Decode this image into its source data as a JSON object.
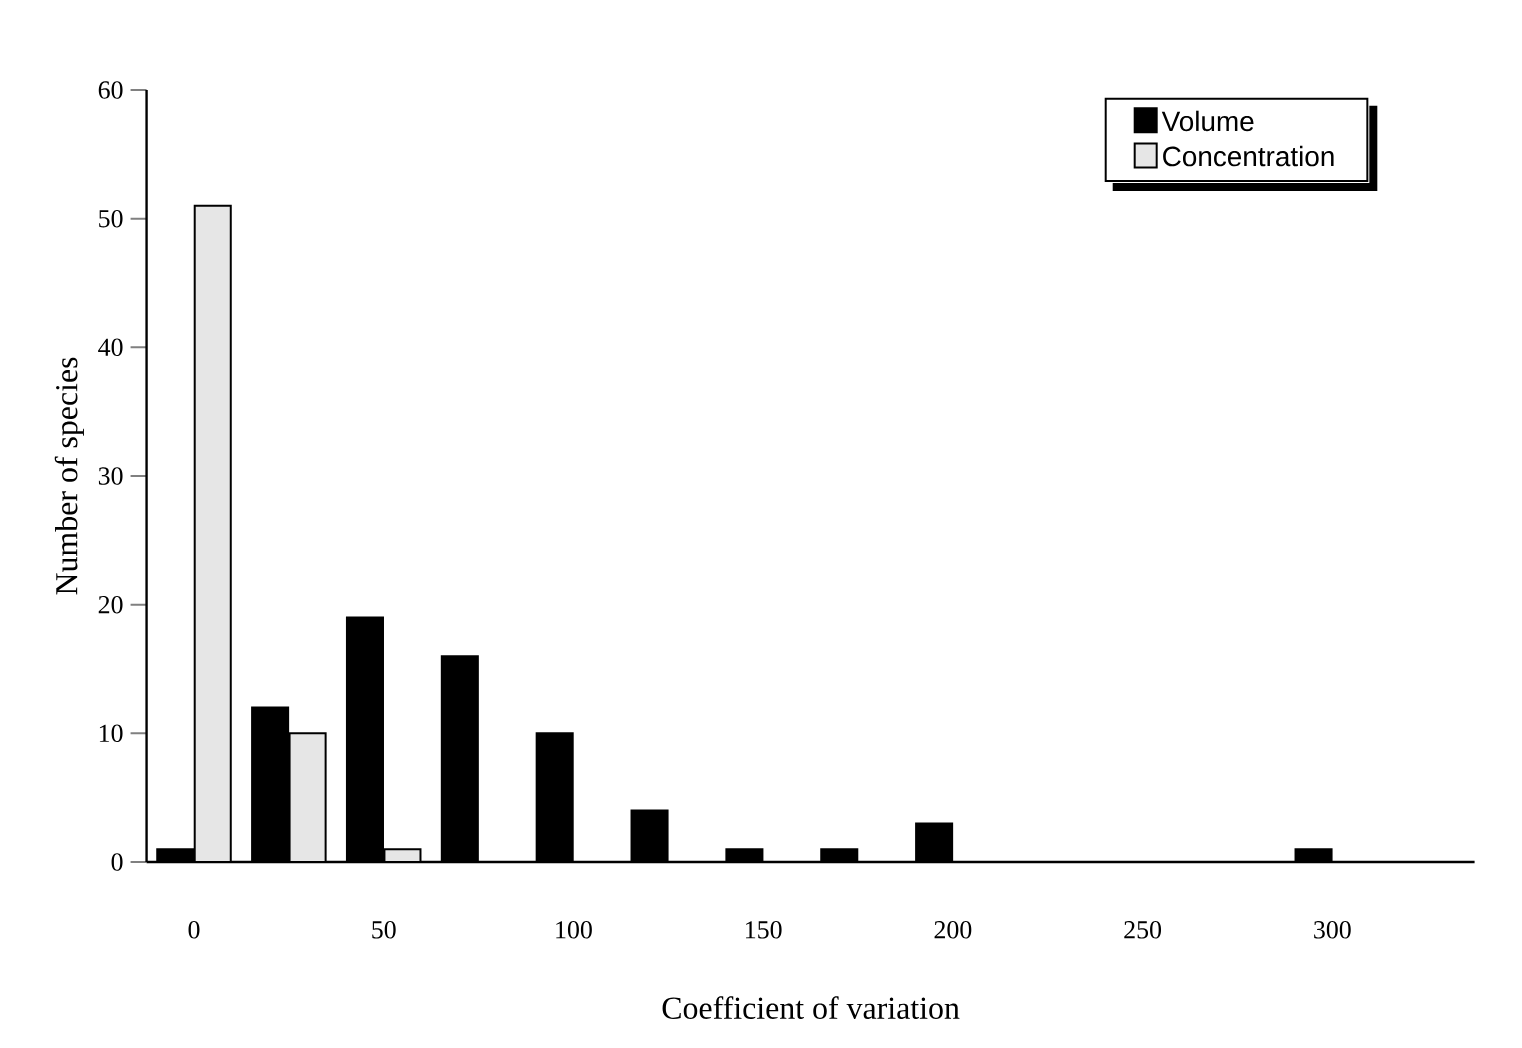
{
  "chart_data": {
    "type": "bar",
    "xlabel": "Coefficient of variation",
    "ylabel": "Number of species",
    "categories": [
      "0",
      null,
      "50",
      null,
      "100",
      null,
      "150",
      null,
      "200",
      null,
      "250",
      null,
      "300",
      null
    ],
    "series": [
      {
        "name": "Volume",
        "color": "#000000",
        "values": [
          1,
          12,
          19,
          16,
          10,
          4,
          1,
          1,
          3,
          0,
          0,
          0,
          1,
          0
        ]
      },
      {
        "name": "Concentration",
        "color": "#e6e6e6",
        "values": [
          51,
          10,
          1,
          0,
          0,
          0,
          0,
          0,
          0,
          0,
          0,
          0,
          0,
          0
        ]
      }
    ],
    "ylim": [
      0,
      60
    ],
    "yticks": [
      0,
      10,
      20,
      30,
      40,
      50,
      60
    ],
    "grid": false,
    "legend": "top right"
  }
}
